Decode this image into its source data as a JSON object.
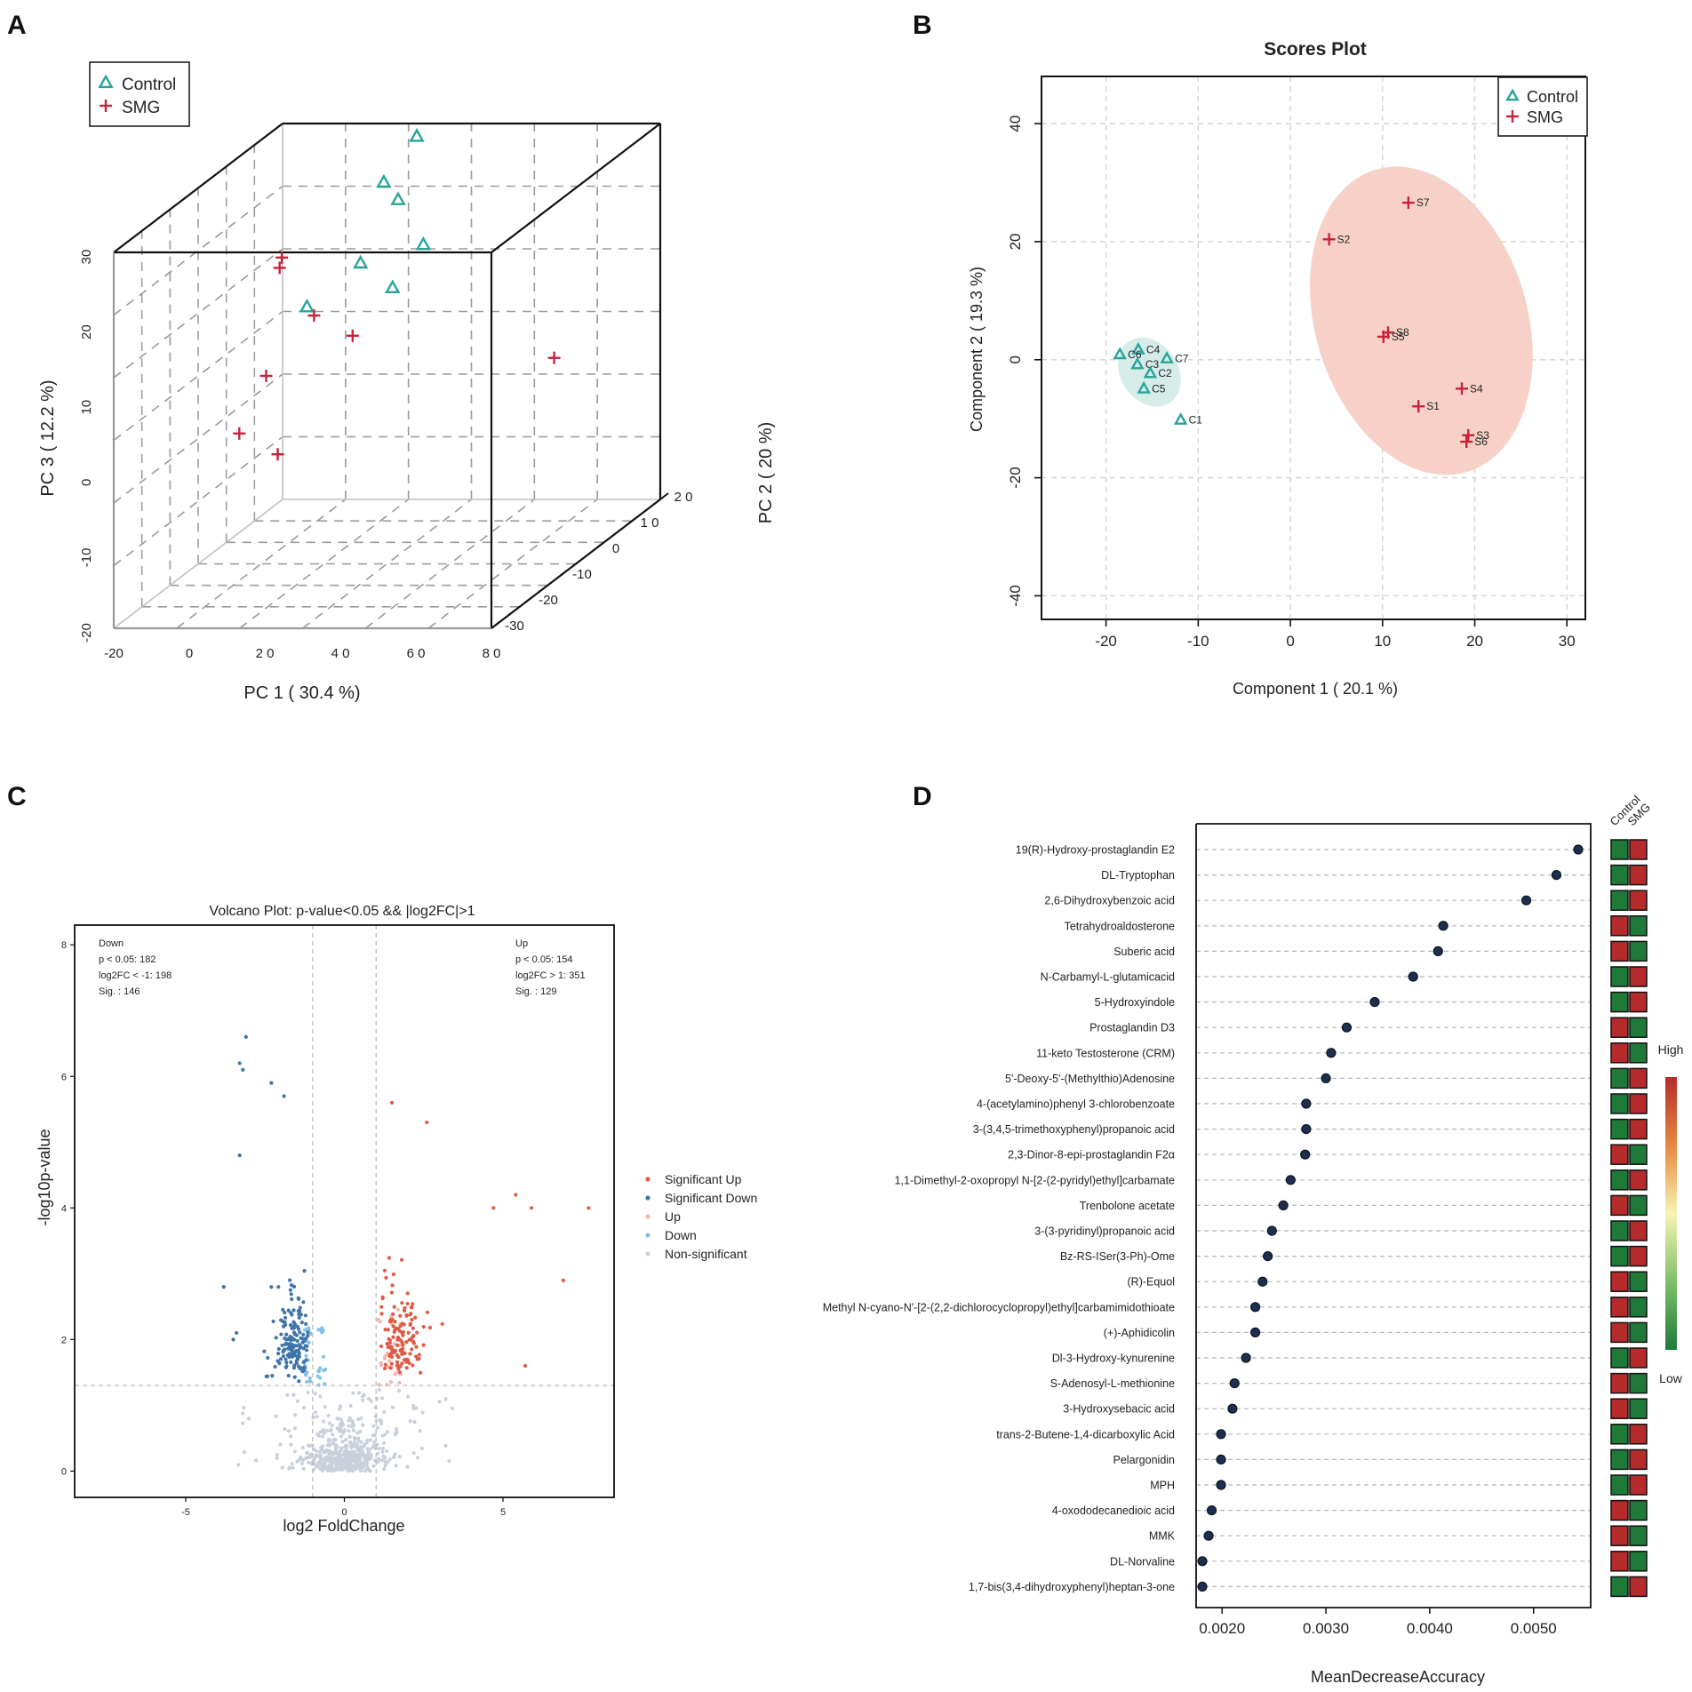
{
  "panels": {
    "a": "A",
    "b": "B",
    "c": "C",
    "d": "D"
  },
  "colors": {
    "control": "#2aa39a",
    "smg": "#c8223a",
    "sig_up": "#e05a46",
    "sig_down": "#3f74aa",
    "up": "#f4b6b0",
    "down": "#86c1e8",
    "nonsig": "#c9d0db",
    "dot_fill": "#1d2f4f",
    "heat_high": "#b52b2b",
    "heat_low": "#1f7a3a"
  },
  "chart_data": [
    {
      "id": "pca3d",
      "type": "scatter",
      "title": "",
      "xlabel": "PC 1 ( 30.4 %)",
      "ylabel": "PC 2 ( 20 %)",
      "zlabel": "PC 3 ( 12.2 %)",
      "xlim": [
        -20,
        80
      ],
      "ylim": [
        -30,
        20
      ],
      "zlim": [
        -20,
        30
      ],
      "x_ticks": [
        "-20",
        "0",
        "2 0",
        "4 0",
        "6 0",
        "8 0"
      ],
      "y_ticks": [
        "-30",
        "-20",
        "-10",
        "0",
        "1 0",
        "2 0"
      ],
      "z_ticks": [
        "-20",
        "-10",
        "0",
        "10",
        "20",
        "30"
      ],
      "legend": [
        "Control",
        "SMG"
      ],
      "legend_position": "top-left",
      "series": [
        {
          "name": "Control",
          "marker": "triangle",
          "points": [
            [
              20,
              15,
              30
            ],
            [
              24,
              5,
              25
            ],
            [
              22,
              3,
              28
            ],
            [
              28,
              8,
              18
            ],
            [
              23,
              -5,
              20
            ],
            [
              27,
              0,
              15
            ],
            [
              24,
              -22,
              20
            ]
          ]
        },
        {
          "name": "SMG",
          "marker": "plus",
          "points": [
            [
              -5,
              3,
              18
            ],
            [
              -2,
              -1,
              18
            ],
            [
              8,
              -2,
              12
            ],
            [
              20,
              -4,
              10
            ],
            [
              68,
              2,
              5
            ],
            [
              -2,
              -5,
              5
            ],
            [
              -10,
              -4,
              -3
            ],
            [
              10,
              -15,
              -2
            ]
          ]
        }
      ]
    },
    {
      "id": "scores",
      "type": "scatter",
      "title": "Scores Plot",
      "xlabel": "Component 1 ( 20.1 %)",
      "ylabel": "Component 2 ( 19.3 %)",
      "xlim": [
        -27,
        32
      ],
      "ylim": [
        -44,
        48
      ],
      "x_ticks": [
        -20,
        -10,
        0,
        10,
        20,
        30
      ],
      "y_ticks": [
        -40,
        -20,
        0,
        20,
        40
      ],
      "legend": [
        "Control",
        "SMG"
      ],
      "legend_position": "top-right",
      "series": [
        {
          "name": "Control",
          "points": [
            {
              "label": "C4",
              "x": -16.5,
              "y": 1.7
            },
            {
              "label": "C6",
              "x": -18.5,
              "y": 0.9
            },
            {
              "label": "C7",
              "x": -13.4,
              "y": 0.2
            },
            {
              "label": "C3",
              "x": -16.6,
              "y": -0.8
            },
            {
              "label": "C2",
              "x": -15.2,
              "y": -2.3
            },
            {
              "label": "C5",
              "x": -15.9,
              "y": -4.9
            },
            {
              "label": "C1",
              "x": -11.9,
              "y": -10.2
            }
          ]
        },
        {
          "name": "SMG",
          "points": [
            {
              "label": "S7",
              "x": 12.8,
              "y": 26.6
            },
            {
              "label": "S2",
              "x": 4.2,
              "y": 20.4
            },
            {
              "label": "S8",
              "x": 10.6,
              "y": 4.6
            },
            {
              "label": "S5",
              "x": 10.1,
              "y": 3.9
            },
            {
              "label": "S4",
              "x": 18.6,
              "y": -4.9
            },
            {
              "label": "S1",
              "x": 13.9,
              "y": -7.9
            },
            {
              "label": "S3",
              "x": 19.3,
              "y": -12.8
            },
            {
              "label": "S6",
              "x": 19.1,
              "y": -13.9
            }
          ]
        }
      ],
      "ellipses": [
        {
          "group": "Control",
          "cx": -15.3,
          "cy": -2.1,
          "rx": 3.1,
          "ry": 12.5,
          "angle_deg": 34
        },
        {
          "group": "SMG",
          "cx": 14.2,
          "cy": 6.6,
          "rx": 11.5,
          "ry": 53.5,
          "angle_deg": 17
        }
      ]
    },
    {
      "id": "volcano",
      "type": "scatter",
      "title": "Volcano Plot: p-value<0.05 && |log2FC|>1",
      "xlabel": "log2 FoldChange",
      "ylabel": "-log10p-value",
      "xlim": [
        -8.5,
        8.5
      ],
      "ylim": [
        -0.4,
        8.3
      ],
      "x_ticks": [
        -5,
        0,
        5
      ],
      "y_ticks": [
        0,
        2,
        4,
        6,
        8
      ],
      "thresholds": {
        "fc": [
          -1,
          1
        ],
        "p": 1.3
      },
      "annotations": {
        "down": [
          "Down",
          "p < 0.05: 182",
          "log2FC < -1: 198",
          "Sig. : 146"
        ],
        "up": [
          "Up",
          "p < 0.05: 154",
          "log2FC > 1: 351",
          "Sig. : 129"
        ]
      },
      "legend": [
        "Significant Up",
        "Significant Down",
        "Up",
        "Down",
        "Non-significant"
      ],
      "legend_position": "right",
      "counts": {
        "significant_up": 129,
        "significant_down": 146,
        "up": 25,
        "down": 36,
        "non_significant": 500
      },
      "highlight_points": {
        "significant_up": [
          [
            1.5,
            5.6
          ],
          [
            2.6,
            5.3
          ],
          [
            5.4,
            4.2
          ],
          [
            5.9,
            4.0
          ],
          [
            7.7,
            4.0
          ],
          [
            6.9,
            2.9
          ],
          [
            5.7,
            1.6
          ],
          [
            4.7,
            4.0
          ]
        ],
        "significant_down": [
          [
            -3.1,
            6.6
          ],
          [
            -3.3,
            6.2
          ],
          [
            -3.2,
            6.1
          ],
          [
            -2.3,
            5.9
          ],
          [
            -1.9,
            5.7
          ],
          [
            -3.3,
            4.8
          ],
          [
            -3.8,
            2.8
          ],
          [
            -3.4,
            2.1
          ],
          [
            -3.5,
            2.0
          ]
        ]
      }
    },
    {
      "id": "importance",
      "type": "scatter",
      "title": "",
      "xlabel": "MeanDecreaseAccuracy",
      "ylabel": "",
      "xlim": [
        0.00175,
        0.00555
      ],
      "x_ticks": [
        "0.0020",
        "0.0030",
        "0.0040",
        "0.0050"
      ],
      "heat_columns": [
        "Control",
        "SMG"
      ],
      "heat_legend": {
        "high": "High",
        "low": "Low"
      },
      "features": [
        {
          "name": "19(R)-Hydroxy-prostaglandin E2",
          "value": 0.00543,
          "high": "SMG"
        },
        {
          "name": "DL-Tryptophan",
          "value": 0.00522,
          "high": "SMG"
        },
        {
          "name": "2,6-Dihydroxybenzoic acid",
          "value": 0.00493,
          "high": "SMG"
        },
        {
          "name": "Tetrahydroaldosterone",
          "value": 0.00413,
          "high": "Control"
        },
        {
          "name": "Suberic acid",
          "value": 0.00408,
          "high": "Control"
        },
        {
          "name": "N-Carbamyl-L-glutamicacid",
          "value": 0.00384,
          "high": "SMG"
        },
        {
          "name": "5-Hydroxyindole",
          "value": 0.00347,
          "high": "SMG"
        },
        {
          "name": "Prostaglandin D3",
          "value": 0.0032,
          "high": "Control"
        },
        {
          "name": "11-keto Testosterone (CRM)",
          "value": 0.00305,
          "high": "Control"
        },
        {
          "name": "5'-Deoxy-5'-(Methylthio)Adenosine",
          "value": 0.003,
          "high": "SMG"
        },
        {
          "name": "4-(acetylamino)phenyl 3-chlorobenzoate",
          "value": 0.00281,
          "high": "SMG"
        },
        {
          "name": "3-(3,4,5-trimethoxyphenyl)propanoic acid",
          "value": 0.00281,
          "high": "SMG"
        },
        {
          "name": "2,3-Dinor-8-epi-prostaglandin F2α",
          "value": 0.0028,
          "high": "Control"
        },
        {
          "name": "1,1-Dimethyl-2-oxopropyl N-[2-(2-pyridyl)ethyl]carbamate",
          "value": 0.00266,
          "high": "SMG"
        },
        {
          "name": "Trenbolone acetate",
          "value": 0.00259,
          "high": "Control"
        },
        {
          "name": "3-(3-pyridinyl)propanoic acid",
          "value": 0.00248,
          "high": "SMG"
        },
        {
          "name": "Bz-RS-ISer(3-Ph)-Ome",
          "value": 0.00244,
          "high": "SMG"
        },
        {
          "name": "(R)-Equol",
          "value": 0.00239,
          "high": "Control"
        },
        {
          "name": "Methyl N-cyano-N'-[2-(2,2-dichlorocyclopropyl)ethyl]carbamimidothioate",
          "value": 0.00232,
          "high": "Control"
        },
        {
          "name": "(+)-Aphidicolin",
          "value": 0.00232,
          "high": "Control"
        },
        {
          "name": "Dl-3-Hydroxy-kynurenine",
          "value": 0.00223,
          "high": "SMG"
        },
        {
          "name": "S-Adenosyl-L-methionine",
          "value": 0.00212,
          "high": "Control"
        },
        {
          "name": "3-Hydroxysebacic acid",
          "value": 0.0021,
          "high": "Control"
        },
        {
          "name": "trans-2-Butene-1,4-dicarboxylic Acid",
          "value": 0.00199,
          "high": "SMG"
        },
        {
          "name": "Pelargonidin",
          "value": 0.00199,
          "high": "SMG"
        },
        {
          "name": "MPH",
          "value": 0.00199,
          "high": "SMG"
        },
        {
          "name": "4-oxododecanedioic acid",
          "value": 0.0019,
          "high": "Control"
        },
        {
          "name": "MMK",
          "value": 0.00187,
          "high": "Control"
        },
        {
          "name": "DL-Norvaline",
          "value": 0.00181,
          "high": "Control"
        },
        {
          "name": "1,7-bis(3,4-dihydroxyphenyl)heptan-3-one",
          "value": 0.00181,
          "high": "SMG"
        }
      ]
    }
  ]
}
